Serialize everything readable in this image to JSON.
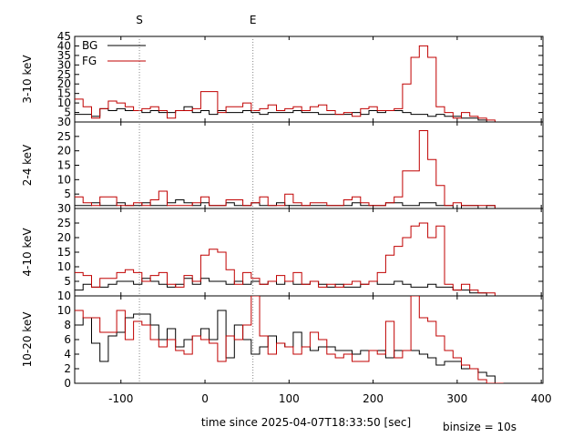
{
  "chart_data": {
    "type": "step-line",
    "xlabel": "time since 2025-04-07T18:33:50 [sec]",
    "xlim": [
      -155,
      402
    ],
    "x_ticks": [
      -100,
      0,
      100,
      200,
      300,
      400
    ],
    "binsize_note": "binsize = 10s",
    "markers": [
      {
        "label": "S",
        "x": -78
      },
      {
        "label": "E",
        "x": 57
      }
    ],
    "legend": {
      "position": "top-left",
      "entries": [
        "BG",
        "FG"
      ]
    },
    "colors": {
      "BG": "#000000",
      "FG": "#c00000"
    },
    "panels": [
      {
        "ylabel": "3-10 keV",
        "ylim": [
          0,
          45
        ],
        "y_ticks": [
          5,
          10,
          15,
          20,
          25,
          30,
          35,
          40,
          45
        ],
        "y_tick_labels": [
          "5",
          "10",
          "15",
          "20",
          "25",
          "30",
          "35",
          "40",
          "45"
        ],
        "bottom_label": "30",
        "series": [
          {
            "name": "BG",
            "x_start": -155,
            "bin": 10,
            "values": [
              4,
              4,
              3,
              7,
              6,
              7,
              6,
              6,
              5,
              6,
              5,
              5,
              6,
              8,
              5,
              6,
              4,
              6,
              5,
              5,
              6,
              5,
              4,
              5,
              5,
              5,
              6,
              5,
              5,
              4,
              4,
              4,
              4,
              5,
              4,
              6,
              5,
              6,
              6,
              5,
              4,
              4,
              3,
              4,
              3,
              3,
              2,
              2,
              1,
              0,
              0
            ]
          },
          {
            "name": "FG",
            "x_start": -155,
            "bin": 10,
            "values": [
              12,
              8,
              2,
              7,
              11,
              10,
              8,
              6,
              7,
              8,
              6,
              2,
              6,
              6,
              7,
              16,
              16,
              5,
              8,
              8,
              10,
              6,
              7,
              9,
              6,
              7,
              8,
              6,
              8,
              9,
              6,
              4,
              5,
              3,
              7,
              8,
              6,
              6,
              7,
              20,
              34,
              40,
              34,
              8,
              5,
              2,
              5,
              3,
              2,
              1,
              0
            ]
          }
        ]
      },
      {
        "ylabel": "2-4 keV",
        "ylim": [
          0,
          30
        ],
        "y_ticks": [
          5,
          10,
          15,
          20,
          25
        ],
        "y_tick_labels": [
          "5",
          "10",
          "15",
          "20",
          "25"
        ],
        "bottom_label": "30",
        "series": [
          {
            "name": "BG",
            "x_start": -155,
            "bin": 10,
            "values": [
              1,
              1,
              2,
              1,
              1,
              2,
              1,
              1,
              2,
              1,
              1,
              2,
              3,
              2,
              1,
              2,
              1,
              1,
              2,
              1,
              1,
              2,
              1,
              1,
              2,
              1,
              1,
              1,
              1,
              1,
              1,
              1,
              1,
              2,
              1,
              1,
              1,
              2,
              2,
              1,
              1,
              2,
              2,
              1,
              1,
              0,
              1,
              1,
              0,
              1,
              0
            ]
          },
          {
            "name": "FG",
            "x_start": -155,
            "bin": 10,
            "values": [
              4,
              2,
              1,
              4,
              4,
              1,
              1,
              2,
              1,
              3,
              6,
              1,
              1,
              1,
              2,
              4,
              1,
              1,
              3,
              3,
              1,
              2,
              4,
              1,
              1,
              5,
              2,
              1,
              2,
              2,
              1,
              1,
              3,
              4,
              2,
              1,
              1,
              2,
              4,
              13,
              13,
              27,
              17,
              8,
              1,
              2,
              1,
              1,
              1,
              1,
              0
            ]
          }
        ]
      },
      {
        "ylabel": "4-10 keV",
        "ylim": [
          0,
          30
        ],
        "y_ticks": [
          5,
          10,
          15,
          20,
          25
        ],
        "y_tick_labels": [
          "5",
          "10",
          "15",
          "20",
          "25"
        ],
        "bottom_label": "10",
        "series": [
          {
            "name": "BG",
            "x_start": -155,
            "bin": 10,
            "values": [
              2,
              4,
              3,
              3,
              4,
              5,
              5,
              4,
              6,
              5,
              4,
              3,
              4,
              6,
              4,
              6,
              5,
              5,
              4,
              5,
              4,
              5,
              4,
              5,
              4,
              5,
              4,
              4,
              5,
              4,
              3,
              4,
              3,
              3,
              4,
              5,
              4,
              4,
              5,
              4,
              3,
              3,
              4,
              3,
              3,
              2,
              2,
              1,
              1,
              0,
              0
            ]
          },
          {
            "name": "FG",
            "x_start": -155,
            "bin": 10,
            "values": [
              8,
              7,
              3,
              6,
              6,
              8,
              9,
              8,
              5,
              7,
              8,
              4,
              3,
              7,
              5,
              14,
              16,
              15,
              9,
              4,
              8,
              6,
              4,
              5,
              7,
              5,
              8,
              4,
              5,
              3,
              4,
              3,
              4,
              5,
              4,
              5,
              8,
              14,
              17,
              20,
              24,
              25,
              20,
              24,
              4,
              2,
              4,
              2,
              1,
              1,
              0
            ]
          }
        ]
      },
      {
        "ylabel": "10-20 keV",
        "ylim": [
          0,
          12
        ],
        "y_ticks": [
          0,
          2,
          4,
          6,
          8,
          10
        ],
        "y_tick_labels": [
          "0",
          "2",
          "4",
          "6",
          "8",
          "10"
        ],
        "bottom_label": "",
        "series": [
          {
            "name": "BG",
            "x_start": -155,
            "bin": 10,
            "values": [
              8,
              9,
              5.5,
              3,
              6.5,
              7,
              9,
              9.5,
              9.5,
              8,
              6,
              7.5,
              5,
              6,
              6.5,
              7.5,
              6,
              10,
              3.5,
              8,
              6,
              4,
              5,
              6.5,
              5.5,
              5,
              7,
              5,
              4.5,
              5,
              5,
              4.5,
              4.5,
              4,
              4.5,
              4.5,
              4.5,
              3.5,
              4.5,
              4.5,
              4.5,
              4,
              3.5,
              2.5,
              3,
              3,
              2,
              2,
              1.5,
              1,
              0
            ]
          },
          {
            "name": "FG",
            "x_start": -155,
            "bin": 10,
            "values": [
              10,
              9,
              9,
              7,
              7,
              10,
              6,
              8.5,
              8,
              6,
              5,
              6,
              4.5,
              4,
              6.5,
              6,
              5.5,
              3,
              6.5,
              6,
              8,
              13,
              6.5,
              4,
              5.5,
              5,
              4,
              5,
              7,
              6,
              4,
              3.5,
              4,
              3,
              3,
              4.5,
              4,
              8.5,
              3.5,
              4.5,
              12.5,
              9,
              8.5,
              6.5,
              4.5,
              3.5,
              2.5,
              2,
              0.5,
              0,
              0
            ]
          }
        ]
      }
    ]
  }
}
